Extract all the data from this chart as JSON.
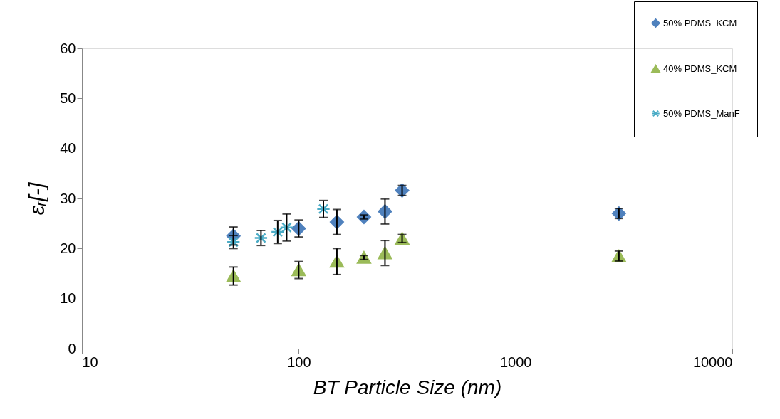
{
  "chart_data": {
    "type": "scatter",
    "xlabel": "BT Particle Size (nm)",
    "ylabel": "εᵣ[-]",
    "log": "x",
    "xlim": [
      10,
      10000
    ],
    "xticks": [
      10,
      100,
      1000,
      10000
    ],
    "ylim": [
      0,
      60
    ],
    "yticks": [
      0,
      10,
      20,
      30,
      40,
      50,
      60
    ],
    "grid": false,
    "legend": "top right",
    "series": [
      {
        "name": "50% PDMS_KCM",
        "color": "#4f81bd",
        "marker": "diamond",
        "x": [
          50,
          100,
          150,
          200,
          250,
          300,
          3000
        ],
        "values": [
          22.5,
          24,
          25.3,
          26.3,
          27.4,
          31.6,
          27
        ],
        "errors": [
          1.8,
          1.7,
          2.5,
          0.4,
          2.5,
          1,
          1
        ]
      },
      {
        "name": "40% PDMS_KCM",
        "color": "#9bbb59",
        "marker": "triangle",
        "x": [
          50,
          100,
          150,
          200,
          250,
          300,
          3000
        ],
        "values": [
          14.5,
          15.7,
          17.4,
          18.2,
          19.1,
          22,
          18.5
        ],
        "errors": [
          1.8,
          1.7,
          2.6,
          0.4,
          2.5,
          0.8,
          1
        ]
      },
      {
        "name": "50% PDMS_ManF",
        "color": "#4bacc6",
        "marker": "cross",
        "x": [
          50,
          67,
          80,
          88,
          130
        ],
        "values": [
          21.3,
          22.1,
          23.3,
          24.2,
          27.9
        ],
        "errors": [
          1.3,
          1.5,
          2.3,
          2.7,
          1.7
        ]
      }
    ]
  }
}
